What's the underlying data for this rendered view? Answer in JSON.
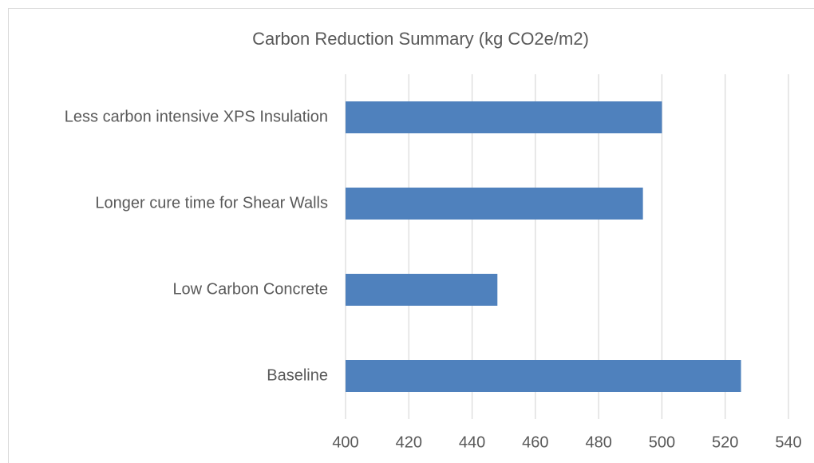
{
  "chart_data": {
    "type": "bar",
    "orientation": "horizontal",
    "title": "Carbon Reduction Summary (kg CO2e/m2)",
    "categories": [
      "Less carbon intensive XPS Insulation",
      "Longer cure time for Shear Walls",
      "Low Carbon Concrete",
      "Baseline"
    ],
    "values": [
      500,
      494,
      448,
      525
    ],
    "color": "#4f81bd",
    "xlim": [
      400,
      540
    ],
    "xticks": [
      400,
      420,
      440,
      460,
      480,
      500,
      520,
      540
    ],
    "grid": true
  }
}
